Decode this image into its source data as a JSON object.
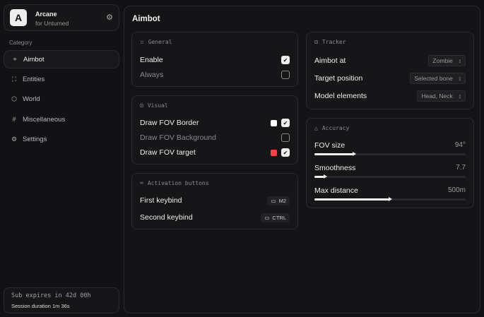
{
  "brand": {
    "logo": "A",
    "name": "Arcane",
    "subtitle": "for Unturned"
  },
  "sidebar": {
    "category_label": "Category",
    "items": [
      {
        "label": "Aimbot",
        "icon": "crosshair-icon",
        "active": true
      },
      {
        "label": "Entities",
        "icon": "entities-icon"
      },
      {
        "label": "World",
        "icon": "cube-icon"
      },
      {
        "label": "Miscellaneous",
        "icon": "grid-icon"
      },
      {
        "label": "Settings",
        "icon": "gear-icon"
      }
    ]
  },
  "subscription": {
    "expires": "Sub expires in 42d 00h",
    "session": "Session duration 1m 36s"
  },
  "main": {
    "title": "Aimbot",
    "general": {
      "title": "General",
      "enable": {
        "label": "Enable",
        "checked": true
      },
      "always": {
        "label": "Always",
        "checked": false
      }
    },
    "visual": {
      "title": "Visual",
      "border": {
        "label": "Draw FOV Border",
        "checked": true,
        "color": "#ffffff"
      },
      "background": {
        "label": "Draw FOV Background",
        "checked": false
      },
      "target": {
        "label": "Draw FOV target",
        "checked": true,
        "color": "#ef4444"
      }
    },
    "activation": {
      "title": "Activation buttons",
      "first": {
        "label": "First keybind",
        "key": "M2"
      },
      "second": {
        "label": "Second keybind",
        "key": "CTRL"
      }
    },
    "tracker": {
      "title": "Tracker",
      "aimbot_at": {
        "label": "Aimbot at",
        "value": "Zombie"
      },
      "target_position": {
        "label": "Target position",
        "value": "Selected bone"
      },
      "model_elements": {
        "label": "Model elements",
        "value": "Head, Neck"
      }
    },
    "accuracy": {
      "title": "Accuracy",
      "fov": {
        "label": "FOV size",
        "value": "94°",
        "fraction": 0.26
      },
      "smoothness": {
        "label": "Smoothness",
        "value": "7.7",
        "fraction": 0.07
      },
      "distance": {
        "label": "Max distance",
        "value": "500m",
        "fraction": 0.5
      }
    }
  }
}
